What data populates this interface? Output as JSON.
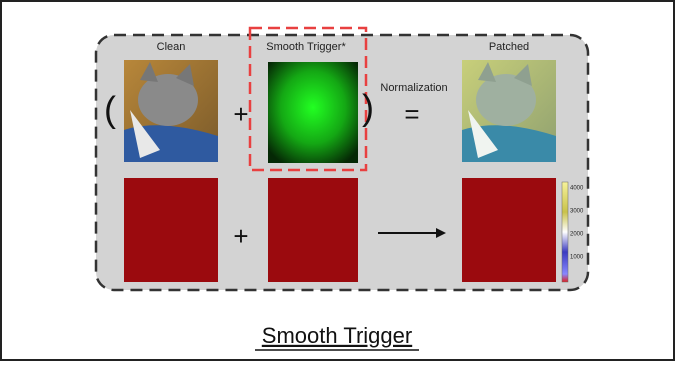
{
  "diagram": {
    "labels": {
      "clean": "Clean",
      "trigger": "Smooth Trigger*",
      "normalization": "Normalization",
      "patched": "Patched"
    },
    "symbols": {
      "open_paren": "(",
      "plus_top": "+",
      "close_paren": ")",
      "equals": "=",
      "plus_bottom": "+"
    },
    "colorbar_ticks": [
      "4000",
      "3000",
      "2000",
      "1000"
    ],
    "title": "Smooth Trigger"
  }
}
